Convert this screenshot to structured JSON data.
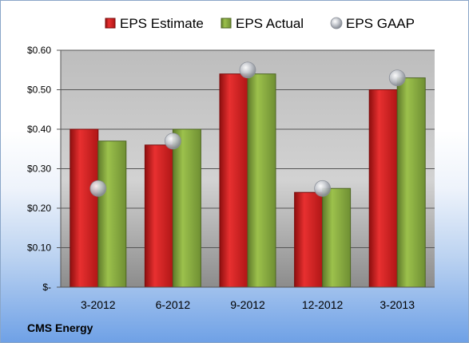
{
  "company": "CMS Energy",
  "chart_data": {
    "type": "bar",
    "categories": [
      "3-2012",
      "6-2012",
      "9-2012",
      "12-2012",
      "3-2013"
    ],
    "series": [
      {
        "name": "EPS Estimate",
        "kind": "bar",
        "color": "#cc1a1a",
        "values": [
          0.4,
          0.36,
          0.54,
          0.24,
          0.5
        ]
      },
      {
        "name": "EPS Actual",
        "kind": "bar",
        "color": "#7fa13c",
        "values": [
          0.37,
          0.4,
          0.54,
          0.25,
          0.53
        ]
      },
      {
        "name": "EPS GAAP",
        "kind": "marker",
        "color": "#b8bcc4",
        "values": [
          0.25,
          0.37,
          0.55,
          0.25,
          0.53
        ]
      }
    ],
    "ylim": [
      0,
      0.6
    ],
    "yticks": [
      0,
      0.1,
      0.2,
      0.3,
      0.4,
      0.5,
      0.6
    ],
    "ytick_labels": [
      "$-",
      "$0.10",
      "$0.20",
      "$0.30",
      "$0.40",
      "$0.50",
      "$0.60"
    ],
    "grid": true,
    "legend_position": "top"
  }
}
